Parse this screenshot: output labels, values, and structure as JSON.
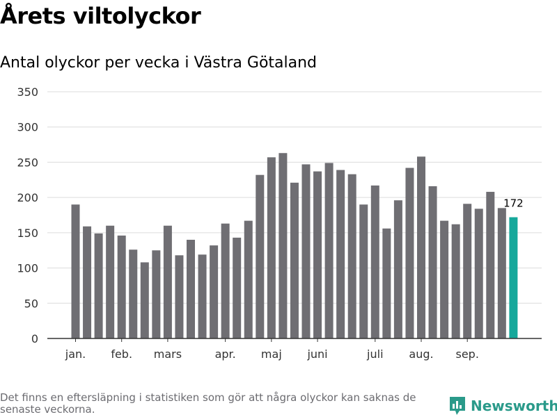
{
  "title": "Årets viltolyckor",
  "subtitle": "Antal olyckor per vecka i Västra Götaland",
  "footnote": "Det finns en eftersläpning i statistiken som gör att några olyckor kan saknas de senaste veckorna.",
  "brand": {
    "name": "Newsworthy",
    "icon": "bar-chart-speech-bubble-icon"
  },
  "colors": {
    "bar": "#6f6e73",
    "highlight": "#16a89b",
    "grid": "#dcdcdc",
    "axis": "#333333",
    "brand": "#2a9a8a"
  },
  "chart_data": {
    "type": "bar",
    "title": "Antal olyckor per vecka i Västra Götaland",
    "xlabel": "",
    "ylabel": "",
    "ylim": [
      0,
      350
    ],
    "y_ticks": [
      0,
      50,
      100,
      150,
      200,
      250,
      300,
      350
    ],
    "grid": true,
    "x": [
      1,
      2,
      3,
      4,
      5,
      6,
      7,
      8,
      9,
      10,
      11,
      12,
      13,
      14,
      15,
      16,
      17,
      18,
      19,
      20,
      21,
      22,
      23,
      24,
      25,
      26,
      27,
      28,
      29,
      30,
      31,
      32,
      33,
      34,
      35,
      36,
      37,
      38
    ],
    "values": [
      190,
      159,
      149,
      160,
      146,
      126,
      108,
      125,
      160,
      118,
      140,
      119,
      132,
      163,
      143,
      167,
      232,
      257,
      263,
      221,
      247,
      237,
      249,
      239,
      233,
      190,
      217,
      156,
      196,
      242,
      258,
      216,
      167,
      162,
      191,
      184,
      208,
      185
    ],
    "highlight": {
      "x": 39,
      "value": 172,
      "label": "172"
    },
    "month_labels": [
      {
        "label": "jan.",
        "x": 1
      },
      {
        "label": "feb.",
        "x": 5
      },
      {
        "label": "mars",
        "x": 9
      },
      {
        "label": "apr.",
        "x": 14
      },
      {
        "label": "maj",
        "x": 18
      },
      {
        "label": "juni",
        "x": 22
      },
      {
        "label": "juli",
        "x": 27
      },
      {
        "label": "aug.",
        "x": 31
      },
      {
        "label": "sep.",
        "x": 35
      }
    ]
  }
}
